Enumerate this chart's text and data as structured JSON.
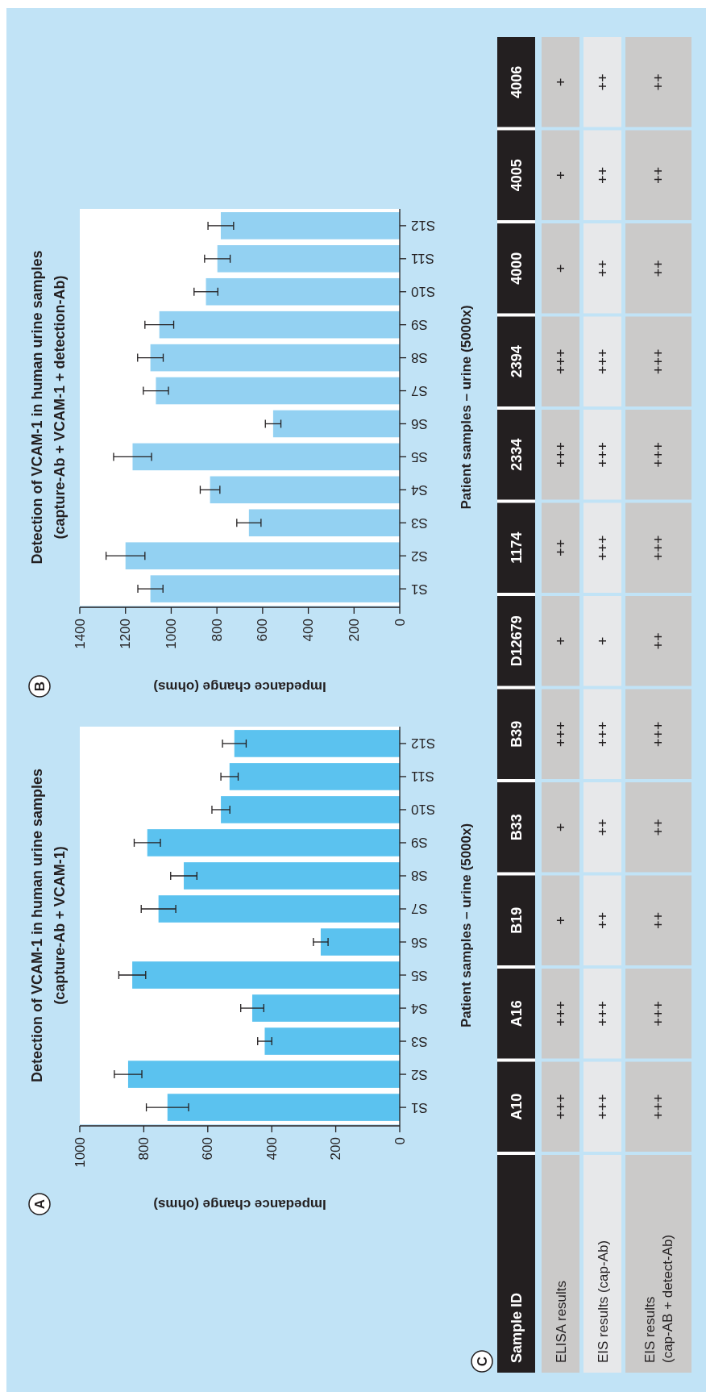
{
  "chart_data": [
    {
      "type": "bar",
      "orientation": "horizontal",
      "title": "Detection of VCAM-1 in human urine samples",
      "subtitle": "(capture-Ab + VCAM-1)",
      "ylabel": "Patient samples – urine (5000x)",
      "xlabel": "Impedance change (ohms)",
      "annotations": [
        "A"
      ],
      "categories": [
        "S12",
        "S11",
        "S10",
        "S9",
        "S8",
        "S7",
        "S6",
        "S5",
        "S4",
        "S3",
        "S2",
        "S1"
      ],
      "values": [
        517,
        532,
        559,
        789,
        675,
        754,
        247,
        836,
        461,
        422,
        849,
        726
      ],
      "errors": [
        37,
        27,
        28,
        41,
        41,
        54,
        23,
        42,
        36,
        22,
        43,
        66
      ],
      "color": "#5bc2ef",
      "xlim": [
        1000,
        0
      ],
      "xticks": [
        0,
        200,
        400,
        600,
        800,
        1000
      ]
    },
    {
      "type": "bar",
      "orientation": "horizontal",
      "title": "Detection of VCAM-1 in human urine samples",
      "subtitle": "(capture-Ab + VCAM-1 + detection-Ab)",
      "ylabel": "Patient samples – urine (5000x)",
      "xlabel": "Impedance change (ohms)",
      "annotations": [
        "B"
      ],
      "categories": [
        "S12",
        "S11",
        "S10",
        "S9",
        "S8",
        "S7",
        "S6",
        "S5",
        "S4",
        "S3",
        "S2",
        "S1"
      ],
      "values": [
        783,
        798,
        848,
        1052,
        1091,
        1067,
        554,
        1169,
        830,
        660,
        1200,
        1091
      ],
      "errors": [
        56,
        56,
        52,
        63,
        56,
        55,
        34,
        83,
        43,
        53,
        85,
        55
      ],
      "color": "#93d1f2",
      "xlim": [
        1400,
        0
      ],
      "xticks": [
        0,
        200,
        400,
        600,
        800,
        1000,
        1200,
        1400
      ]
    },
    {
      "type": "other",
      "ylabel": "Sample ID",
      "annotations": [
        "C"
      ],
      "categories": [
        "ELISA results",
        "EIS results (cap-Ab)",
        "EIS results\n(cap-AB + detect-Ab)"
      ],
      "y_categories": [
        "4006",
        "4005",
        "4000",
        "2394",
        "2334",
        "1174",
        "D12679",
        "B39",
        "B33",
        "B19",
        "A16",
        "A10"
      ],
      "cell_labels": [
        [
          "+",
          "++",
          "++"
        ],
        [
          "+",
          "++",
          "++"
        ],
        [
          "+",
          "++",
          "++"
        ],
        [
          "+++",
          "+++",
          "+++"
        ],
        [
          "+++",
          "+++",
          "+++"
        ],
        [
          "++",
          "+++",
          "+++"
        ],
        [
          "+",
          "+",
          "++"
        ],
        [
          "+++",
          "+++",
          "+++"
        ],
        [
          "+",
          "++",
          "++"
        ],
        [
          "+",
          "++",
          "++"
        ],
        [
          "+++",
          "+++",
          "+++"
        ],
        [
          "+++",
          "+++",
          "+++"
        ]
      ]
    }
  ]
}
